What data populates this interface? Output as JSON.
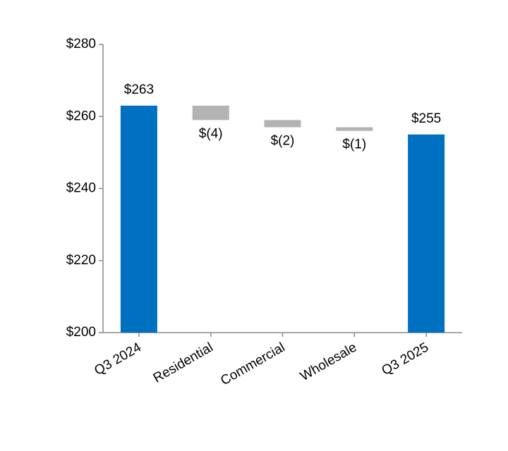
{
  "chart_data": {
    "type": "waterfall",
    "categories": [
      "Q3 2024",
      "Residential",
      "Commercial",
      "Wholesale",
      "Q3 2025"
    ],
    "values": [
      263,
      -4,
      -2,
      -1,
      255
    ],
    "value_labels": [
      "$263",
      "$(4)",
      "$(2)",
      "$(1)",
      "$255"
    ],
    "colors": [
      "#0070c0",
      "#b3b3b3",
      "#b3b3b3",
      "#b3b3b3",
      "#0070c0"
    ],
    "ylim": [
      200,
      280
    ],
    "yticks": [
      {
        "value": 200,
        "label": "$200"
      },
      {
        "value": 220,
        "label": "$220"
      },
      {
        "value": 240,
        "label": "$240"
      },
      {
        "value": 260,
        "label": "$260"
      },
      {
        "value": 280,
        "label": "$280"
      }
    ]
  }
}
